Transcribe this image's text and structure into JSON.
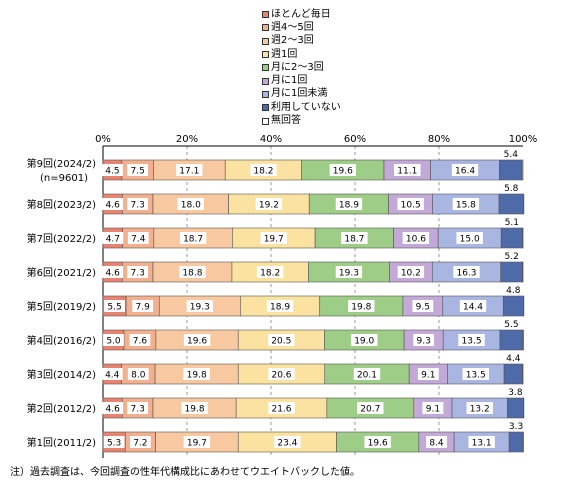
{
  "legend": {
    "items": [
      {
        "label": "ほとんど毎日",
        "color": "#e8836f"
      },
      {
        "label": "週4～5回",
        "color": "#f2b08f"
      },
      {
        "label": "週2～3回",
        "color": "#f8c9a0"
      },
      {
        "label": "週1回",
        "color": "#fbe2a0"
      },
      {
        "label": "月に2～3回",
        "color": "#9dcd86"
      },
      {
        "label": "月に1回",
        "color": "#c3a9d8"
      },
      {
        "label": "月に1回未満",
        "color": "#a9b6e2"
      },
      {
        "label": "利用していない",
        "color": "#4e6aa8"
      },
      {
        "label": "無回答",
        "color": "#ffffff"
      }
    ]
  },
  "note": "注）過去調査は、今回調査の性年代構成比にあわせてウエイトバックした値。",
  "chart_data": {
    "type": "bar",
    "orientation": "horizontal",
    "stacked": "percent",
    "xlim": [
      0,
      100
    ],
    "x_ticks": [
      "0%",
      "20%",
      "40%",
      "60%",
      "80%",
      "100%"
    ],
    "categories": [
      {
        "label": "第9回(2024/2)",
        "sublabel": "(n=9601)"
      },
      {
        "label": "第8回(2023/2)"
      },
      {
        "label": "第7回(2022/2)"
      },
      {
        "label": "第6回(2021/2)"
      },
      {
        "label": "第5回(2019/2)"
      },
      {
        "label": "第4回(2016/2)"
      },
      {
        "label": "第3回(2014/2)"
      },
      {
        "label": "第2回(2012/2)"
      },
      {
        "label": "第1回(2011/2)"
      }
    ],
    "series": [
      {
        "name": "ほとんど毎日",
        "values": [
          4.5,
          4.6,
          4.7,
          4.6,
          5.5,
          5.0,
          4.4,
          4.6,
          5.3
        ]
      },
      {
        "name": "週4～5回",
        "values": [
          7.5,
          7.3,
          7.4,
          7.3,
          7.9,
          7.6,
          8.0,
          7.3,
          7.2
        ]
      },
      {
        "name": "週2～3回",
        "values": [
          17.1,
          18.0,
          18.7,
          18.8,
          19.3,
          19.6,
          19.8,
          19.8,
          19.7
        ]
      },
      {
        "name": "週1回",
        "values": [
          18.2,
          19.2,
          19.7,
          18.2,
          18.9,
          20.5,
          20.6,
          21.6,
          23.4
        ]
      },
      {
        "name": "月に2～3回",
        "values": [
          19.6,
          18.9,
          18.7,
          19.3,
          19.8,
          19.0,
          20.1,
          20.7,
          19.6
        ]
      },
      {
        "name": "月に1回",
        "values": [
          11.1,
          10.5,
          10.6,
          10.2,
          9.5,
          9.3,
          9.1,
          9.1,
          8.4
        ]
      },
      {
        "name": "月に1回未満",
        "values": [
          16.4,
          15.8,
          15.0,
          16.3,
          14.4,
          13.5,
          13.5,
          13.2,
          13.1
        ]
      },
      {
        "name": "利用していない",
        "values": [
          5.4,
          5.8,
          5.1,
          5.2,
          4.8,
          5.5,
          4.4,
          3.8,
          3.3
        ]
      },
      {
        "name": "無回答",
        "values": [
          0.2,
          0.1,
          0.1,
          0.1,
          0.1,
          0.1,
          0.1,
          0.1,
          0.1
        ]
      }
    ],
    "labels": [
      [
        "4.5",
        "7.5",
        "17.1",
        "18.2",
        "19.6",
        "11.1",
        "16.4",
        "5.4"
      ],
      [
        "4.6",
        "7.3",
        "18.0",
        "19.2",
        "18.9",
        "10.5",
        "15.8",
        "5.8"
      ],
      [
        "4.7",
        "7.4",
        "18.7",
        "19.7",
        "18.7",
        "10.6",
        "15.0",
        "5.1"
      ],
      [
        "4.6",
        "7.3",
        "18.8",
        "18.2",
        "19.3",
        "10.2",
        "16.3",
        "5.2"
      ],
      [
        "5.5",
        "7.9",
        "19.3",
        "18.9",
        "19.8",
        "9.5",
        "14.4",
        "4.8"
      ],
      [
        "5.0",
        "7.6",
        "19.6",
        "20.5",
        "19.0",
        "9.3",
        "13.5",
        "5.5"
      ],
      [
        "4.4",
        "8.0",
        "19.8",
        "20.6",
        "20.1",
        "9.1",
        "13.5",
        "4.4"
      ],
      [
        "4.6",
        "7.3",
        "19.8",
        "21.6",
        "20.7",
        "9.1",
        "13.2",
        "3.8"
      ],
      [
        "5.3",
        "7.2",
        "19.7",
        "23.4",
        "19.6",
        "8.4",
        "13.1",
        "3.3"
      ]
    ],
    "grid": "vertical dashed"
  }
}
